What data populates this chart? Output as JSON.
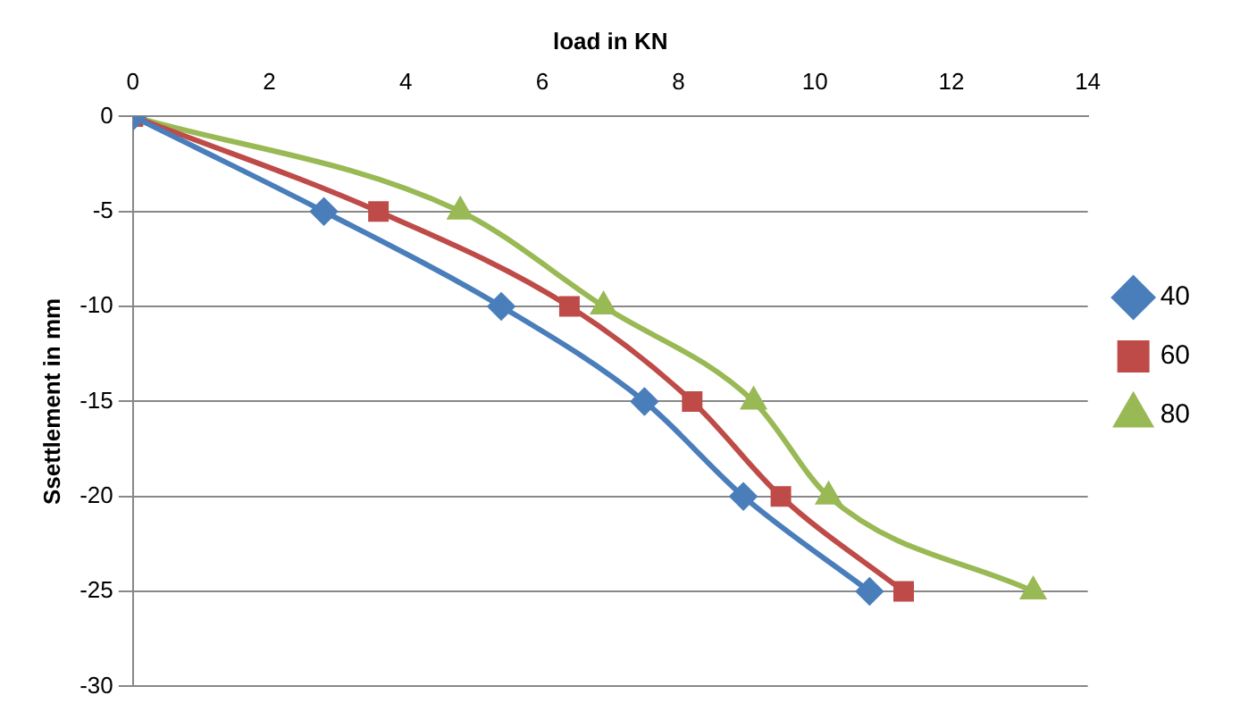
{
  "chart_data": {
    "type": "line",
    "xlabel": "load in KN",
    "ylabel": "Ssettlement in mm",
    "xlim": [
      0,
      14
    ],
    "xticks": [
      0,
      2,
      4,
      6,
      8,
      10,
      12,
      14
    ],
    "ylim": [
      -30,
      0
    ],
    "yticks": [
      -30,
      -25,
      -20,
      -15,
      -10,
      -5,
      0
    ],
    "grid": "y",
    "legend": "right",
    "line_style": "solid",
    "series": [
      {
        "name": "40",
        "color": "#4a7ebb",
        "marker": "diamond",
        "x": [
          0,
          2.8,
          5.4,
          7.5,
          8.95,
          10.8
        ],
        "values": [
          0,
          -5,
          -10,
          -15,
          -20,
          -25
        ]
      },
      {
        "name": "60",
        "color": "#be4b48",
        "marker": "square",
        "x": [
          0,
          3.6,
          6.4,
          8.2,
          9.5,
          11.3
        ],
        "values": [
          0,
          -5,
          -10,
          -15,
          -20,
          -25
        ]
      },
      {
        "name": "80",
        "color": "#98b954",
        "marker": "triangle",
        "x": [
          0,
          4.8,
          6.9,
          9.1,
          10.2,
          13.2
        ],
        "values": [
          0,
          -5,
          -10,
          -15,
          -20,
          -25
        ]
      }
    ]
  }
}
